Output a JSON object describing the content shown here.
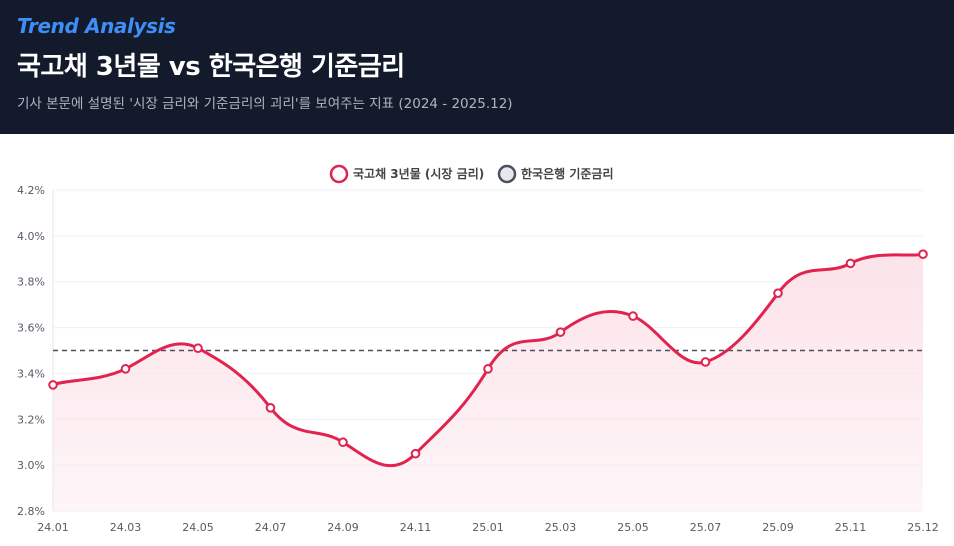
{
  "header": {
    "eyebrow": "Trend Analysis",
    "title": "국고채 3년물 vs 한국은행 기준금리",
    "subtitle": "기사 본문에 설명된 '시장 금리와 기준금리의 괴리'를 보여주는 지표 (2024 - 2025.12)"
  },
  "colors": {
    "header_bg": "#121a2b",
    "eyebrow": "#3e8ef7",
    "market_line": "#e0244f",
    "market_fill": "#fbe3e9",
    "base_line": "#4a5060"
  },
  "chart_data": {
    "type": "line",
    "x": [
      "24.01",
      "24.03",
      "24.05",
      "24.07",
      "24.09",
      "24.11",
      "25.01",
      "25.03",
      "25.05",
      "25.07",
      "25.09",
      "25.11",
      "25.12"
    ],
    "series": [
      {
        "name": "국고채 3년물 (시장 금리)",
        "values": [
          3.35,
          3.42,
          3.51,
          3.25,
          3.1,
          3.05,
          3.42,
          3.58,
          3.65,
          3.45,
          3.75,
          3.88,
          3.92
        ],
        "color": "#e0244f",
        "style": "solid, smooth, area-filled"
      },
      {
        "name": "한국은행 기준금리",
        "values": [
          3.5,
          3.5,
          3.5,
          3.5,
          3.5,
          3.5,
          3.5,
          3.5,
          3.5,
          3.5,
          3.5,
          3.5,
          3.5
        ],
        "color": "#4a5060",
        "style": "dashed"
      }
    ],
    "y_ticks": [
      "4.2%",
      "4.0%",
      "3.8%",
      "3.6%",
      "3.4%",
      "3.2%",
      "3.0%",
      "2.8%"
    ],
    "ylim": [
      2.8,
      4.2
    ],
    "grid": true,
    "legend_position": "top-center"
  }
}
